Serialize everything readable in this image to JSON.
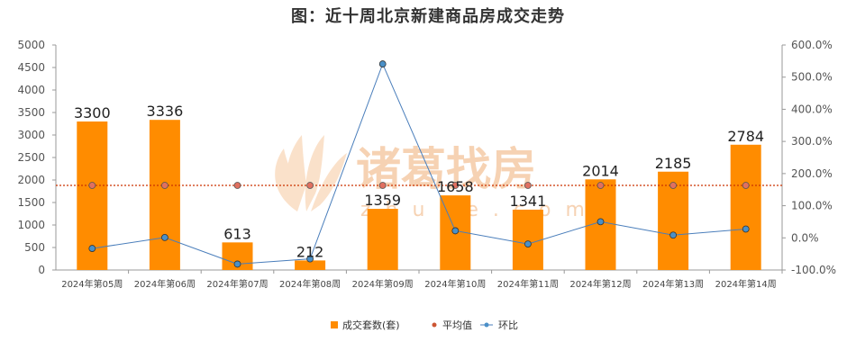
{
  "chart_data": {
    "type": "bar",
    "title": "图：近十周北京新建商品房成交走势",
    "categories": [
      "2024年第05周",
      "2024年第06周",
      "2024年第07周",
      "2024年第08周",
      "2024年第09周",
      "2024年第10周",
      "2024年第11周",
      "2024年第12周",
      "2024年第13周",
      "2024年第14周"
    ],
    "series": [
      {
        "name": "成交套数(套)",
        "type": "bar",
        "axis": "left",
        "color": "#ff8c00",
        "values": [
          3300,
          3336,
          613,
          212,
          1359,
          1658,
          1341,
          2014,
          2185,
          2784
        ]
      },
      {
        "name": "平均值",
        "type": "dotted-line",
        "axis": "left",
        "color": "#cc3300",
        "values": [
          1880,
          1880,
          1880,
          1880,
          1880,
          1880,
          1880,
          1880,
          1880,
          1880
        ]
      },
      {
        "name": "环比",
        "type": "line",
        "axis": "right",
        "color": "#4a7ebb",
        "values": [
          -33.0,
          1.1,
          -81.6,
          -65.4,
          541.0,
          22.0,
          -19.1,
          50.2,
          8.5,
          27.4
        ]
      }
    ],
    "ylim_left": [
      0,
      5000
    ],
    "yticks_left": [
      "0",
      "500",
      "1000",
      "1500",
      "2000",
      "2500",
      "3000",
      "3500",
      "4000",
      "4500",
      "5000"
    ],
    "ylim_right": [
      -100,
      600
    ],
    "yticks_right": [
      "-100.0%",
      "0.0%",
      "100.0%",
      "200.0%",
      "300.0%",
      "400.0%",
      "500.0%",
      "600.0%"
    ],
    "legend_position": "bottom-center",
    "grid": false
  },
  "watermark": {
    "text": "诸葛找房",
    "sub": "zhuge.com"
  }
}
